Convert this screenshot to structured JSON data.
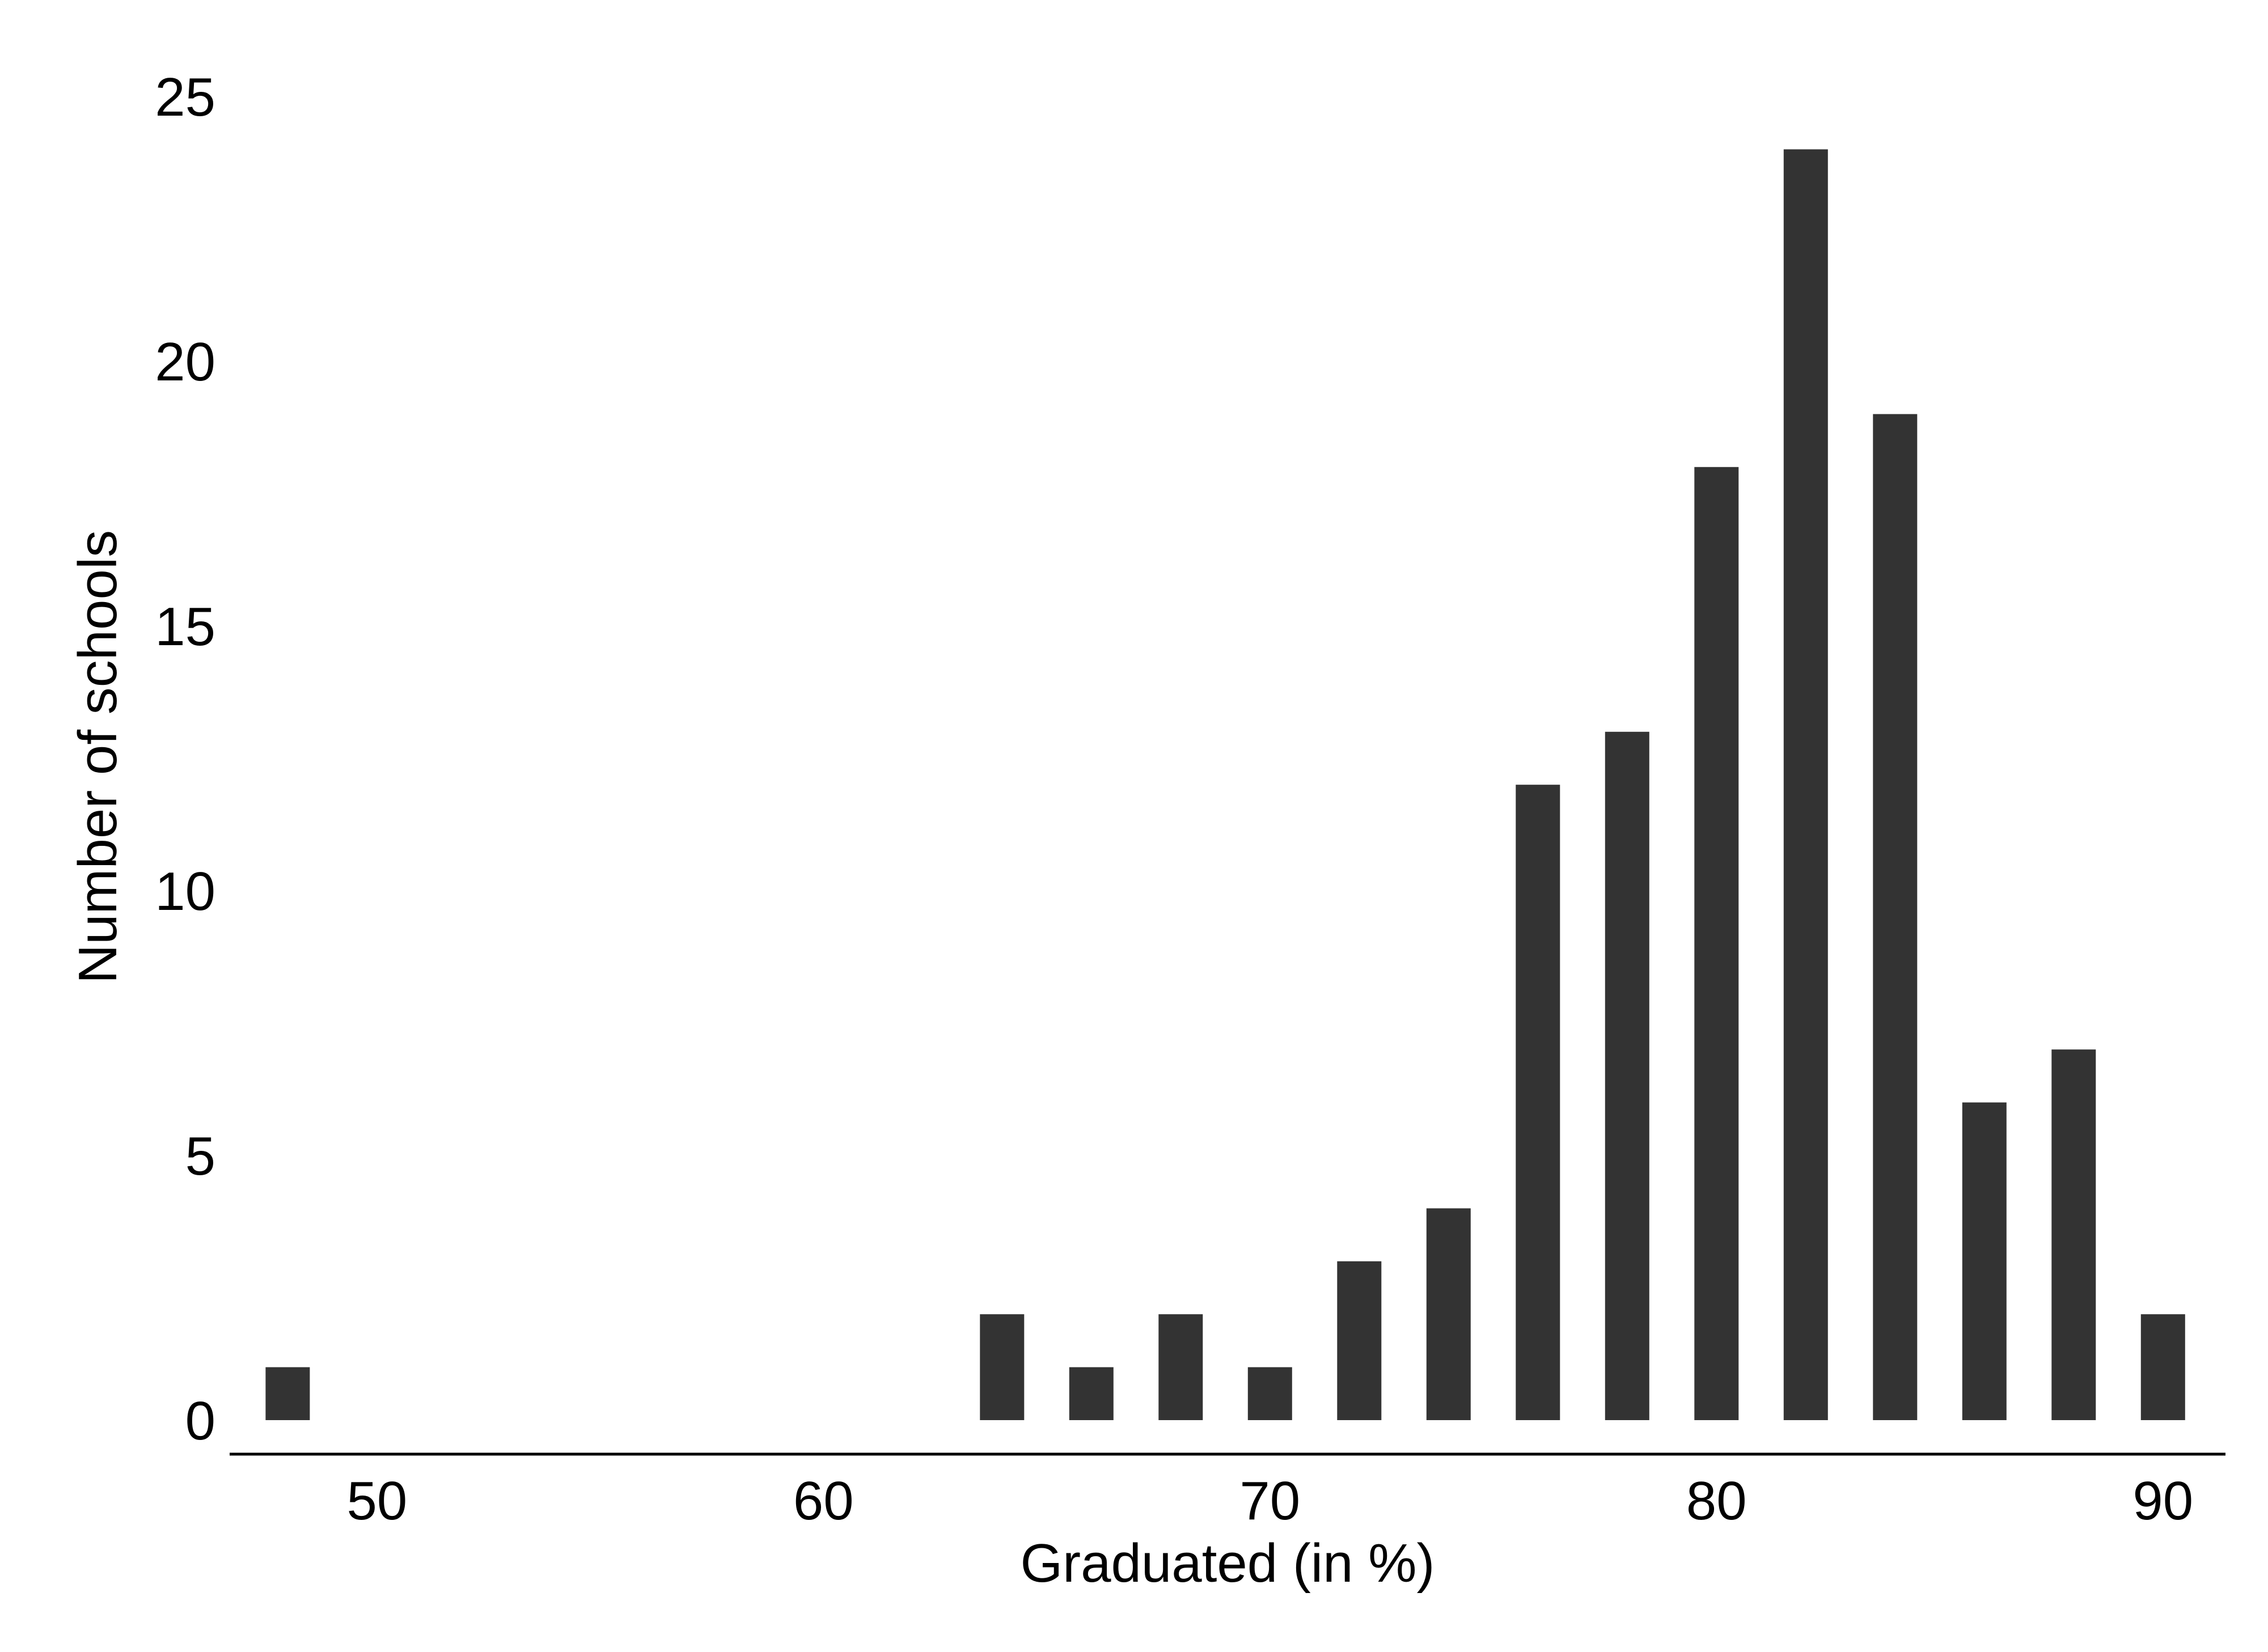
{
  "chart_data": {
    "type": "bar",
    "xlabel": "Graduated (in %)",
    "ylabel": "Number of schools",
    "x": [
      48,
      64,
      66,
      68,
      70,
      72,
      74,
      76,
      78,
      80,
      82,
      84,
      86,
      88,
      90
    ],
    "values": [
      1,
      2,
      1,
      2,
      1,
      3,
      4,
      12,
      13,
      18,
      24,
      19,
      6,
      7,
      2
    ],
    "xlim": [
      46.7,
      91.4
    ],
    "ylim": [
      0,
      25
    ],
    "x_ticks": [
      50,
      60,
      70,
      80,
      90
    ],
    "y_ticks": [
      0,
      5,
      10,
      15,
      20,
      25
    ],
    "bar_color": "#333333",
    "grid": false,
    "legend": "none"
  }
}
